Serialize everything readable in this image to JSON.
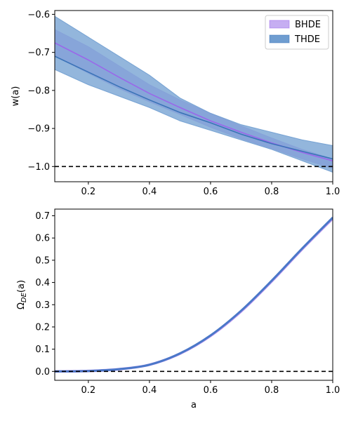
{
  "chart_data": [
    {
      "type": "area",
      "xlabel": "",
      "ylabel": "w(a)",
      "xlim": [
        0.09,
        1.0
      ],
      "ylim": [
        -1.04,
        -0.59
      ],
      "xticks": [
        0.2,
        0.4,
        0.6,
        0.8,
        1.0
      ],
      "xtick_labels": [
        "0.2",
        "0.4",
        "0.6",
        "0.8",
        "1.0"
      ],
      "yticks": [
        -0.6,
        -0.7,
        -0.8,
        -0.9,
        -1.0
      ],
      "ytick_labels": [
        "−0.6",
        "−0.7",
        "−0.8",
        "−0.9",
        "−1.0"
      ],
      "legend_position": "top-right",
      "reference_line": {
        "y": -1.0,
        "style": "dashed",
        "color": "#000000"
      },
      "series": [
        {
          "name": "BHDE",
          "color": "#9a67ea",
          "fill_color": "#c6aef2",
          "x": [
            0.09,
            0.2,
            0.3,
            0.4,
            0.5,
            0.6,
            0.7,
            0.8,
            0.9,
            1.0
          ],
          "median": [
            -0.675,
            -0.72,
            -0.765,
            -0.808,
            -0.845,
            -0.88,
            -0.91,
            -0.938,
            -0.963,
            -0.985
          ],
          "upper": [
            -0.64,
            -0.685,
            -0.735,
            -0.785,
            -0.825,
            -0.86,
            -0.893,
            -0.925,
            -0.955,
            -0.98
          ],
          "lower": [
            -0.71,
            -0.755,
            -0.795,
            -0.83,
            -0.863,
            -0.897,
            -0.927,
            -0.953,
            -0.98,
            -1.005
          ]
        },
        {
          "name": "THDE",
          "color": "#3a73b8",
          "fill_color": "#6f9dd0",
          "x": [
            0.09,
            0.2,
            0.3,
            0.4,
            0.5,
            0.6,
            0.7,
            0.8,
            0.9,
            1.0
          ],
          "median": [
            -0.71,
            -0.752,
            -0.79,
            -0.825,
            -0.858,
            -0.885,
            -0.915,
            -0.94,
            -0.96,
            -0.98
          ],
          "upper": [
            -0.605,
            -0.66,
            -0.71,
            -0.76,
            -0.82,
            -0.86,
            -0.89,
            -0.91,
            -0.93,
            -0.945
          ],
          "lower": [
            -0.745,
            -0.785,
            -0.815,
            -0.845,
            -0.88,
            -0.905,
            -0.93,
            -0.955,
            -0.985,
            -1.015
          ]
        }
      ]
    },
    {
      "type": "line",
      "xlabel": "a",
      "ylabel": "Ω_DE(a)",
      "ylabel_main": "Ω",
      "ylabel_sub": "DE",
      "ylabel_tail": "(a)",
      "xlim": [
        0.09,
        1.0
      ],
      "ylim": [
        -0.04,
        0.73
      ],
      "xticks": [
        0.2,
        0.4,
        0.6,
        0.8,
        1.0
      ],
      "xtick_labels": [
        "0.2",
        "0.4",
        "0.6",
        "0.8",
        "1.0"
      ],
      "yticks": [
        0.0,
        0.1,
        0.2,
        0.3,
        0.4,
        0.5,
        0.6,
        0.7
      ],
      "ytick_labels": [
        "0.0",
        "0.1",
        "0.2",
        "0.3",
        "0.4",
        "0.5",
        "0.6",
        "0.7"
      ],
      "reference_line": {
        "y": 0.0,
        "style": "dashed",
        "color": "#000000"
      },
      "series": [
        {
          "name": "BHDE",
          "color": "#9a67ea",
          "x": [
            0.09,
            0.2,
            0.3,
            0.4,
            0.5,
            0.6,
            0.7,
            0.8,
            0.9,
            1.0
          ],
          "y": [
            0.0,
            0.002,
            0.01,
            0.03,
            0.08,
            0.16,
            0.27,
            0.405,
            0.55,
            0.688
          ]
        },
        {
          "name": "THDE",
          "color": "#4a78c8",
          "x": [
            0.09,
            0.2,
            0.3,
            0.4,
            0.5,
            0.6,
            0.7,
            0.8,
            0.9,
            1.0
          ],
          "y": [
            0.0,
            0.002,
            0.01,
            0.03,
            0.081,
            0.162,
            0.273,
            0.408,
            0.553,
            0.692
          ]
        }
      ]
    }
  ]
}
